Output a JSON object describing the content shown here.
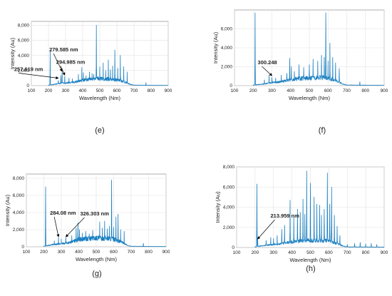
{
  "colors": {
    "line": "#1a7fc1",
    "frame": "#9a9a9a",
    "grid": "#e2e2e2",
    "text": "#222222",
    "arrow": "#000000"
  },
  "chart_data": [
    {
      "panel_label": "(e)",
      "type": "line",
      "xlabel": "Wavelength (Nm)",
      "ylabel": "Intensity (Au)",
      "xlim": [
        100,
        900
      ],
      "ylim": [
        0,
        8500
      ],
      "xticks": [
        "100",
        "200",
        "300",
        "400",
        "500",
        "600",
        "700",
        "800",
        "900"
      ],
      "yticks": [
        "0",
        "2,000",
        "4,000",
        "6,000",
        "8,000"
      ],
      "ytick_values": [
        0,
        2000,
        4000,
        6000,
        8000
      ],
      "grid": true,
      "baseline": [
        [
          200,
          60
        ],
        [
          230,
          150
        ],
        [
          270,
          300
        ],
        [
          300,
          350
        ],
        [
          350,
          450
        ],
        [
          400,
          700
        ],
        [
          450,
          850
        ],
        [
          480,
          950
        ],
        [
          500,
          900
        ],
        [
          550,
          850
        ],
        [
          600,
          750
        ],
        [
          650,
          450
        ],
        [
          680,
          150
        ],
        [
          700,
          60
        ],
        [
          800,
          40
        ],
        [
          900,
          30
        ]
      ],
      "peaks": [
        [
          210,
          4600
        ],
        [
          257.6,
          800
        ],
        [
          272,
          1300
        ],
        [
          279.6,
          2200
        ],
        [
          295,
          1200
        ],
        [
          320,
          1000
        ],
        [
          340,
          900
        ],
        [
          375,
          1500
        ],
        [
          395,
          2400
        ],
        [
          404,
          1700
        ],
        [
          420,
          1300
        ],
        [
          440,
          1800
        ],
        [
          455,
          1600
        ],
        [
          465,
          1500
        ],
        [
          480,
          8000
        ],
        [
          500,
          2500
        ],
        [
          520,
          3000
        ],
        [
          535,
          2000
        ],
        [
          550,
          3400
        ],
        [
          562,
          2100
        ],
        [
          575,
          2600
        ],
        [
          588,
          4700
        ],
        [
          605,
          2300
        ],
        [
          620,
          4000
        ],
        [
          640,
          2500
        ],
        [
          660,
          1800
        ],
        [
          770,
          400
        ]
      ],
      "annotations": [
        {
          "text": "257.619 nm",
          "target": [
            257.6,
            800
          ]
        },
        {
          "text": "279.585  nm",
          "target": [
            279.6,
            1700
          ]
        },
        {
          "text": "294.985  nm",
          "target": [
            295,
            1200
          ]
        }
      ]
    },
    {
      "panel_label": "(f)",
      "type": "line",
      "xlabel": "Wavelength (Nm)",
      "ylabel": "Intensity (Au)",
      "xlim": [
        100,
        900
      ],
      "ylim": [
        0,
        8000
      ],
      "xticks": [
        "100",
        "200",
        "300",
        "400",
        "500",
        "600",
        "700",
        "800",
        "900"
      ],
      "yticks": [
        "0",
        "2,000",
        "4,000",
        "6,000"
      ],
      "ytick_values": [
        0,
        2000,
        4000,
        6000
      ],
      "grid": true,
      "baseline": [
        [
          200,
          60
        ],
        [
          250,
          150
        ],
        [
          300,
          300
        ],
        [
          350,
          400
        ],
        [
          400,
          650
        ],
        [
          450,
          750
        ],
        [
          500,
          800
        ],
        [
          550,
          850
        ],
        [
          600,
          800
        ],
        [
          650,
          450
        ],
        [
          680,
          150
        ],
        [
          700,
          60
        ],
        [
          800,
          40
        ],
        [
          900,
          30
        ]
      ],
      "peaks": [
        [
          210,
          7700
        ],
        [
          260,
          600
        ],
        [
          285,
          1100
        ],
        [
          300.2,
          900
        ],
        [
          320,
          800
        ],
        [
          350,
          1100
        ],
        [
          380,
          1300
        ],
        [
          395,
          2900
        ],
        [
          404,
          2000
        ],
        [
          420,
          1500
        ],
        [
          445,
          2200
        ],
        [
          470,
          1900
        ],
        [
          500,
          2200
        ],
        [
          520,
          2800
        ],
        [
          545,
          2600
        ],
        [
          565,
          3200
        ],
        [
          580,
          3000
        ],
        [
          588,
          7700
        ],
        [
          600,
          2600
        ],
        [
          610,
          4500
        ],
        [
          625,
          3000
        ],
        [
          640,
          2400
        ],
        [
          660,
          1800
        ],
        [
          770,
          400
        ]
      ],
      "annotations": [
        {
          "text": "300.248",
          "target": [
            300.2,
            900
          ]
        }
      ]
    },
    {
      "panel_label": "(g)",
      "type": "line",
      "xlabel": "Wavelength (Nm)",
      "ylabel": "Intensity (Au)",
      "xlim": [
        100,
        900
      ],
      "ylim": [
        0,
        8500
      ],
      "xticks": [
        "100",
        "200",
        "300",
        "400",
        "500",
        "600",
        "700",
        "800",
        "900"
      ],
      "yticks": [
        "0",
        "2,000",
        "4,000",
        "6,000",
        "8,000"
      ],
      "ytick_values": [
        0,
        2000,
        4000,
        6000,
        8000
      ],
      "grid": true,
      "baseline": [
        [
          200,
          60
        ],
        [
          250,
          250
        ],
        [
          300,
          350
        ],
        [
          350,
          500
        ],
        [
          400,
          850
        ],
        [
          450,
          950
        ],
        [
          500,
          1000
        ],
        [
          550,
          1000
        ],
        [
          600,
          900
        ],
        [
          650,
          500
        ],
        [
          680,
          150
        ],
        [
          700,
          60
        ],
        [
          800,
          40
        ],
        [
          900,
          30
        ]
      ],
      "peaks": [
        [
          210,
          7000
        ],
        [
          260,
          700
        ],
        [
          284.1,
          1100
        ],
        [
          300,
          900
        ],
        [
          326.3,
          1200
        ],
        [
          360,
          1300
        ],
        [
          385,
          2200
        ],
        [
          395,
          2800
        ],
        [
          404,
          2000
        ],
        [
          420,
          1600
        ],
        [
          440,
          1800
        ],
        [
          460,
          1500
        ],
        [
          480,
          1900
        ],
        [
          520,
          2900
        ],
        [
          535,
          2200
        ],
        [
          548,
          3000
        ],
        [
          563,
          2100
        ],
        [
          575,
          2400
        ],
        [
          588,
          7800
        ],
        [
          600,
          2300
        ],
        [
          613,
          3500
        ],
        [
          625,
          3800
        ],
        [
          640,
          2000
        ],
        [
          660,
          1800
        ],
        [
          770,
          400
        ]
      ],
      "annotations": [
        {
          "text": "284.08  nm",
          "target": [
            284.1,
            1000
          ]
        },
        {
          "text": "326.303  nm",
          "target": [
            326.3,
            1000
          ]
        }
      ]
    },
    {
      "panel_label": "(h)",
      "type": "line",
      "xlabel": "Wavelength (Nm)",
      "ylabel": "Intensity (Au)",
      "xlim": [
        100,
        900
      ],
      "ylim": [
        0,
        8000
      ],
      "xticks": [
        "100",
        "200",
        "300",
        "400",
        "500",
        "600",
        "700",
        "800",
        "900"
      ],
      "yticks": [
        "0",
        "2,000",
        "4,000",
        "6,000",
        "8,000"
      ],
      "ytick_values": [
        0,
        2000,
        4000,
        6000,
        8000
      ],
      "grid": true,
      "baseline": [
        [
          200,
          60
        ],
        [
          250,
          200
        ],
        [
          300,
          300
        ],
        [
          350,
          400
        ],
        [
          400,
          550
        ],
        [
          450,
          650
        ],
        [
          500,
          700
        ],
        [
          550,
          700
        ],
        [
          600,
          650
        ],
        [
          650,
          350
        ],
        [
          680,
          120
        ],
        [
          700,
          60
        ],
        [
          800,
          50
        ],
        [
          900,
          40
        ]
      ],
      "peaks": [
        [
          210,
          6300
        ],
        [
          214,
          900
        ],
        [
          260,
          700
        ],
        [
          285,
          1000
        ],
        [
          300,
          900
        ],
        [
          320,
          1200
        ],
        [
          345,
          1800
        ],
        [
          360,
          2200
        ],
        [
          390,
          4700
        ],
        [
          410,
          3000
        ],
        [
          430,
          3800
        ],
        [
          445,
          3500
        ],
        [
          460,
          4800
        ],
        [
          470,
          3300
        ],
        [
          480,
          7600
        ],
        [
          500,
          6400
        ],
        [
          520,
          5000
        ],
        [
          535,
          4300
        ],
        [
          550,
          4200
        ],
        [
          560,
          3200
        ],
        [
          575,
          3800
        ],
        [
          592,
          7400
        ],
        [
          605,
          4300
        ],
        [
          615,
          6000
        ],
        [
          630,
          3200
        ],
        [
          645,
          2100
        ],
        [
          660,
          1200
        ],
        [
          700,
          300
        ],
        [
          740,
          400
        ],
        [
          770,
          500
        ],
        [
          800,
          350
        ],
        [
          830,
          400
        ],
        [
          860,
          300
        ]
      ],
      "annotations": [
        {
          "text": "213.959  nm",
          "target": [
            214,
            700
          ]
        }
      ]
    }
  ]
}
